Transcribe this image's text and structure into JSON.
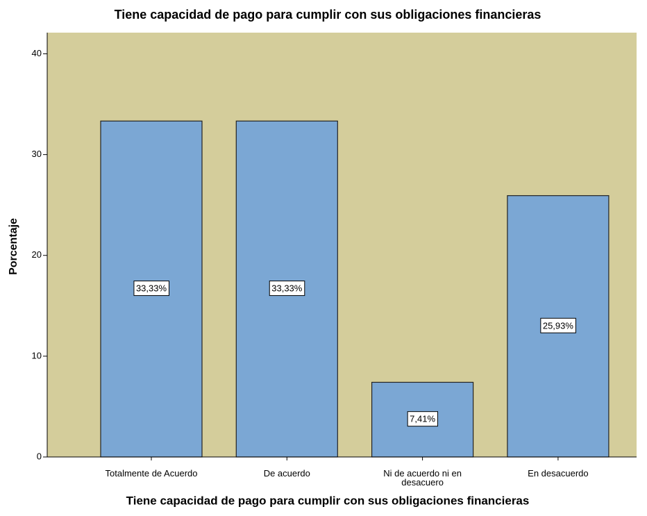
{
  "chart_data": {
    "type": "bar",
    "title": "Tiene capacidad de pago para cumplir con sus obligaciones financieras",
    "x_label": "Tiene capacidad de pago para cumplir con sus obligaciones financieras",
    "y_label": "Porcentaje",
    "categories": [
      "Totalmente de Acuerdo",
      "De acuerdo",
      "Ni de acuerdo ni en desacuero",
      "En desacuerdo"
    ],
    "values": [
      33.33,
      33.33,
      7.41,
      25.93
    ],
    "value_labels": [
      "33,33%",
      "33,33%",
      "7,41%",
      "25,93%"
    ],
    "color": "#7ba7d4",
    "background": "#d4cd9b",
    "ylim": [
      0,
      42.1
    ],
    "yticks": [
      0,
      10,
      20,
      30,
      40
    ],
    "grid": false
  }
}
